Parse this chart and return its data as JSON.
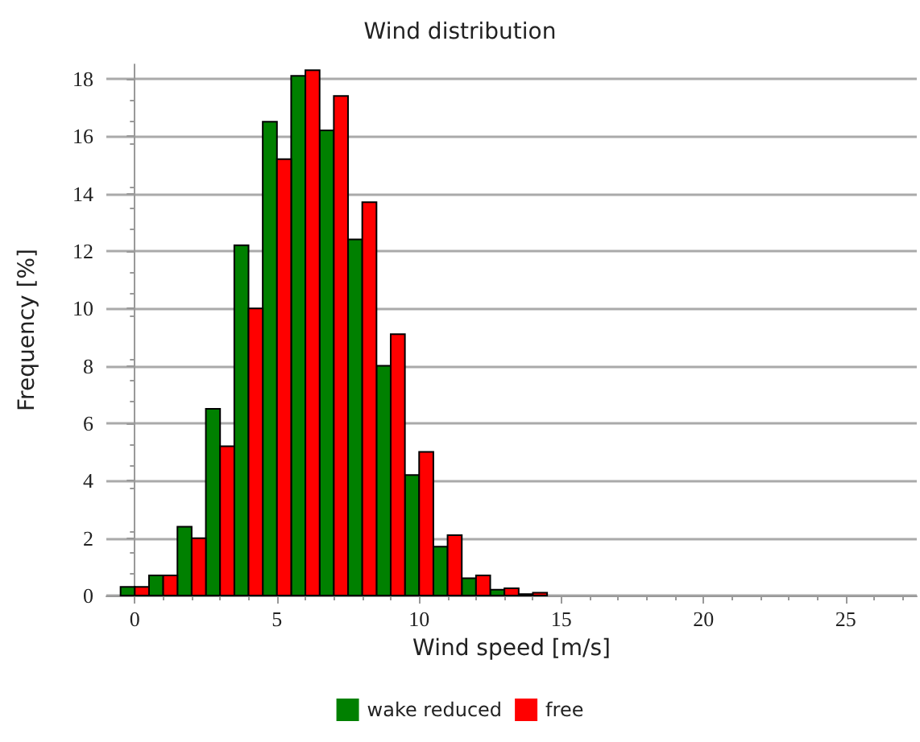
{
  "chart_data": {
    "type": "bar",
    "title": "Wind distribution",
    "xlabel": "Wind speed [m/s]",
    "ylabel": "Frequency [%]",
    "x": [
      0,
      1,
      2,
      3,
      4,
      5,
      6,
      7,
      8,
      9,
      10,
      11,
      12,
      13,
      14
    ],
    "series": [
      {
        "name": "wake reduced",
        "color": "#008000",
        "values": [
          0.3,
          0.7,
          2.4,
          6.5,
          12.2,
          16.5,
          18.1,
          16.2,
          12.4,
          8.0,
          4.2,
          1.7,
          0.6,
          0.2,
          0.05
        ]
      },
      {
        "name": "free",
        "color": "#ff0000",
        "values": [
          0.3,
          0.7,
          2.0,
          5.2,
          10.0,
          15.2,
          18.3,
          17.4,
          13.7,
          9.1,
          5.0,
          2.1,
          0.7,
          0.25,
          0.1
        ]
      }
    ],
    "xlim": [
      -1,
      27.5
    ],
    "xticks": [
      0,
      5,
      10,
      15,
      20,
      25
    ],
    "ylim": [
      0,
      18.5
    ],
    "yticks": [
      0,
      2,
      4,
      6,
      8,
      10,
      12,
      14,
      16,
      18
    ],
    "grid": "y",
    "legend": "bottom"
  }
}
